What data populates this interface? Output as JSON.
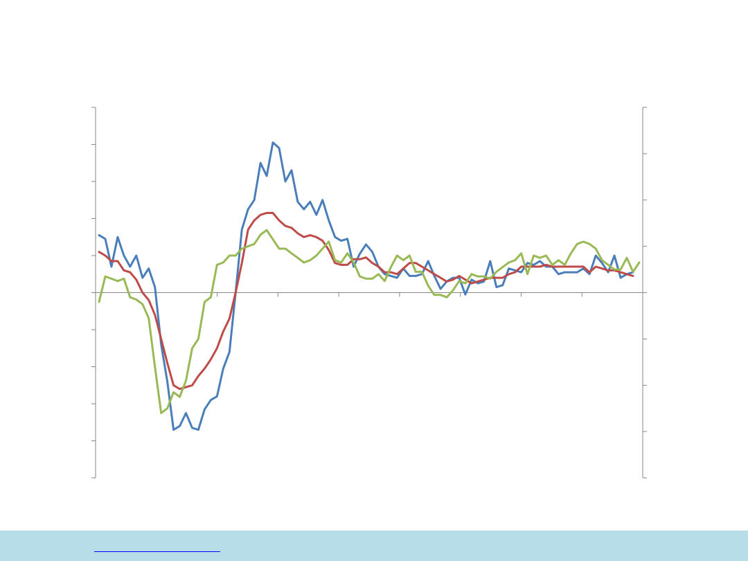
{
  "chart_data": {
    "type": "line",
    "grid": false,
    "left_axis": {
      "min": -5,
      "max": 5,
      "ticks": [
        -5,
        -4,
        -3,
        -2,
        -1,
        0,
        1,
        2,
        3,
        4,
        5
      ]
    },
    "right_axis": {
      "min": -4,
      "max": 4,
      "ticks": [
        -4,
        -3,
        -2,
        -1,
        0,
        1,
        2,
        3,
        4
      ]
    },
    "x": {
      "start": 0,
      "end": 108,
      "tick_every": 12
    },
    "series": [
      {
        "color": "#4a7ebb",
        "axis": "left",
        "values": [
          1.55,
          1.45,
          0.7,
          1.5,
          1.0,
          0.7,
          1.0,
          0.4,
          0.65,
          0.15,
          -1.4,
          -2.4,
          -3.7,
          -3.6,
          -3.25,
          -3.65,
          -3.7,
          -3.15,
          -2.9,
          -2.8,
          -2.05,
          -1.6,
          0.0,
          1.7,
          2.25,
          2.5,
          3.5,
          3.15,
          4.05,
          3.9,
          3.0,
          3.3,
          2.45,
          2.25,
          2.45,
          2.1,
          2.5,
          1.95,
          1.5,
          1.4,
          1.45,
          0.7,
          1.05,
          1.3,
          1.1,
          0.7,
          0.5,
          0.45,
          0.4,
          0.65,
          0.45,
          0.45,
          0.5,
          0.85,
          0.45,
          0.1,
          0.3,
          0.4,
          0.4,
          -0.05,
          0.35,
          0.25,
          0.3,
          0.85,
          0.15,
          0.2,
          0.65,
          0.6,
          0.55,
          0.8,
          0.75,
          0.85,
          0.7,
          0.7,
          0.5,
          0.55,
          0.55,
          0.55,
          0.65,
          0.5,
          1.0,
          0.8,
          0.55,
          1.0,
          0.4,
          0.5,
          0.55
        ]
      },
      {
        "color": "#be4b48",
        "axis": "left",
        "values": [
          1.1,
          1.0,
          0.85,
          0.85,
          0.6,
          0.55,
          0.35,
          0.0,
          -0.2,
          -0.6,
          -1.25,
          -1.9,
          -2.5,
          -2.6,
          -2.55,
          -2.5,
          -2.25,
          -2.05,
          -1.8,
          -1.5,
          -1.05,
          -0.7,
          0.0,
          0.8,
          1.7,
          1.95,
          2.1,
          2.15,
          2.15,
          1.95,
          1.8,
          1.75,
          1.6,
          1.5,
          1.55,
          1.5,
          1.4,
          1.15,
          0.8,
          0.75,
          0.75,
          0.9,
          0.9,
          0.95,
          0.8,
          0.7,
          0.55,
          0.55,
          0.5,
          0.65,
          0.8,
          0.8,
          0.7,
          0.6,
          0.5,
          0.4,
          0.3,
          0.35,
          0.45,
          0.35,
          0.25,
          0.3,
          0.35,
          0.4,
          0.4,
          0.4,
          0.5,
          0.55,
          0.7,
          0.7,
          0.7,
          0.7,
          0.75,
          0.7,
          0.7,
          0.7,
          0.7,
          0.7,
          0.7,
          0.55,
          0.7,
          0.65,
          0.6,
          0.6,
          0.55,
          0.5,
          0.45
        ]
      },
      {
        "color": "#98b954",
        "axis": "right",
        "values": [
          -0.2,
          0.35,
          0.3,
          0.25,
          0.3,
          -0.1,
          -0.15,
          -0.25,
          -0.55,
          -1.6,
          -2.6,
          -2.5,
          -2.15,
          -2.25,
          -1.9,
          -1.2,
          -1.0,
          -0.2,
          -0.1,
          0.6,
          0.65,
          0.8,
          0.8,
          0.95,
          1.0,
          1.05,
          1.25,
          1.35,
          1.15,
          0.95,
          0.95,
          0.85,
          0.75,
          0.65,
          0.7,
          0.8,
          0.95,
          1.1,
          0.7,
          0.65,
          0.85,
          0.65,
          0.35,
          0.3,
          0.3,
          0.4,
          0.25,
          0.55,
          0.8,
          0.7,
          0.8,
          0.45,
          0.45,
          0.15,
          -0.05,
          -0.05,
          -0.1,
          0.05,
          0.25,
          0.2,
          0.4,
          0.35,
          0.35,
          0.3,
          0.45,
          0.55,
          0.65,
          0.7,
          0.85,
          0.4,
          0.8,
          0.75,
          0.8,
          0.6,
          0.7,
          0.6,
          0.85,
          1.05,
          1.1,
          1.05,
          0.95,
          0.7,
          0.6,
          0.5,
          0.5,
          0.75,
          0.45,
          0.65
        ]
      }
    ]
  },
  "footer": {
    "band_color": "#b7dde8",
    "link_text": ""
  }
}
